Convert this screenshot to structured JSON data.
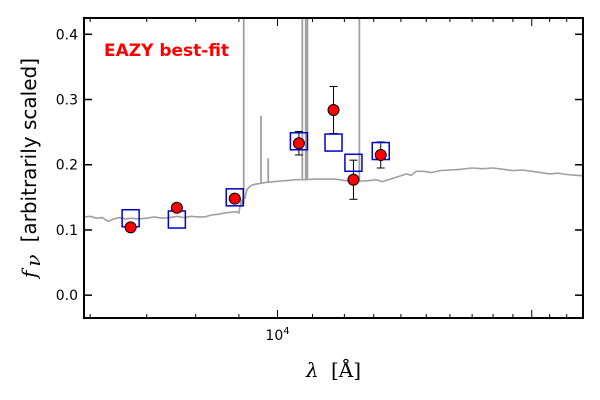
{
  "chart_data": {
    "type": "scatter",
    "annotation": "EAZY best-fit",
    "annotation_color": "#ff0000",
    "xlabel_symbol": "λ",
    "xlabel_unit": "[Å]",
    "ylabel_symbol": "f",
    "ylabel_subscript": "ν",
    "ylabel_text": "[arbitrarily scaled]",
    "x_scale": "log",
    "xlim": [
      5900,
      23000
    ],
    "ylim": [
      -0.035,
      0.425
    ],
    "x_tick_labels": [
      {
        "value": 10000,
        "label": "10^4"
      }
    ],
    "y_ticks": [
      0.0,
      0.1,
      0.2,
      0.3,
      0.4
    ],
    "y_tick_labels": [
      "0.0",
      "0.1",
      "0.2",
      "0.3",
      "0.4"
    ],
    "grid": false,
    "legend": "none",
    "series": [
      {
        "type": "observed_photometry",
        "color": "#ff0000",
        "points": [
          {
            "x": 6700,
            "y": 0.104
          },
          {
            "x": 7600,
            "y": 0.134
          },
          {
            "x": 8900,
            "y": 0.148
          },
          {
            "x": 10600,
            "y": 0.233,
            "yerr": 0.018
          },
          {
            "x": 11650,
            "y": 0.284,
            "yerr": 0.036
          },
          {
            "x": 12300,
            "y": 0.177,
            "yerr": 0.03
          },
          {
            "x": 13250,
            "y": 0.215,
            "yerr": 0.02
          }
        ]
      },
      {
        "type": "model_photometry",
        "color": "#0000cc",
        "points": [
          {
            "x": 6700,
            "y": 0.118
          },
          {
            "x": 7600,
            "y": 0.116
          },
          {
            "x": 8900,
            "y": 0.15
          },
          {
            "x": 10600,
            "y": 0.236
          },
          {
            "x": 11650,
            "y": 0.234
          },
          {
            "x": 12300,
            "y": 0.203
          },
          {
            "x": 13250,
            "y": 0.221
          }
        ]
      },
      {
        "type": "model_spectrum",
        "color": "#a0a0a0",
        "points": [
          [
            5900,
            0.12
          ],
          [
            6000,
            0.121
          ],
          [
            6100,
            0.118
          ],
          [
            6200,
            0.119
          ],
          [
            6300,
            0.113
          ],
          [
            6400,
            0.117
          ],
          [
            6500,
            0.119
          ],
          [
            6600,
            0.117
          ],
          [
            6700,
            0.118
          ],
          [
            6850,
            0.117
          ],
          [
            7000,
            0.118
          ],
          [
            7150,
            0.12
          ],
          [
            7300,
            0.118
          ],
          [
            7450,
            0.119
          ],
          [
            7600,
            0.121
          ],
          [
            7750,
            0.119
          ],
          [
            7900,
            0.121
          ],
          [
            8050,
            0.12
          ],
          [
            8200,
            0.12
          ],
          [
            8350,
            0.123
          ],
          [
            8500,
            0.124
          ],
          [
            8650,
            0.126
          ],
          [
            8800,
            0.127
          ],
          [
            8950,
            0.128
          ],
          [
            9000,
            0.126
          ],
          [
            9050,
            0.145
          ],
          [
            9080,
            0.14
          ],
          [
            9120,
            0.155
          ],
          [
            9150,
            0.148
          ],
          [
            9200,
            0.162
          ],
          [
            9300,
            0.168
          ],
          [
            9400,
            0.17
          ],
          [
            9500,
            0.171
          ],
          [
            9700,
            0.173
          ],
          [
            9900,
            0.174
          ],
          [
            10100,
            0.175
          ],
          [
            10300,
            0.176
          ],
          [
            10500,
            0.177
          ],
          [
            10800,
            0.177
          ],
          [
            11100,
            0.178
          ],
          [
            11400,
            0.178
          ],
          [
            11700,
            0.178
          ],
          [
            12000,
            0.176
          ],
          [
            12300,
            0.175
          ],
          [
            12600,
            0.175
          ],
          [
            12900,
            0.176
          ],
          [
            13100,
            0.177
          ],
          [
            13300,
            0.174
          ],
          [
            13600,
            0.178
          ],
          [
            14000,
            0.183
          ],
          [
            14200,
            0.186
          ],
          [
            14400,
            0.184
          ],
          [
            14600,
            0.19
          ],
          [
            14900,
            0.19
          ],
          [
            15200,
            0.188
          ],
          [
            15600,
            0.191
          ],
          [
            16000,
            0.192
          ],
          [
            16500,
            0.193
          ],
          [
            17000,
            0.195
          ],
          [
            17500,
            0.194
          ],
          [
            18000,
            0.195
          ],
          [
            18500,
            0.193
          ],
          [
            19000,
            0.191
          ],
          [
            19500,
            0.192
          ],
          [
            20000,
            0.19
          ],
          [
            20500,
            0.188
          ],
          [
            21000,
            0.186
          ],
          [
            21500,
            0.187
          ],
          [
            22000,
            0.185
          ],
          [
            22500,
            0.184
          ],
          [
            23000,
            0.183
          ]
        ],
        "emission_lines": [
          {
            "x": 9120,
            "y": 0.425
          },
          {
            "x": 9560,
            "y": 0.275
          },
          {
            "x": 9750,
            "y": 0.21
          },
          {
            "x": 10700,
            "y": 0.425
          },
          {
            "x": 10800,
            "y": 0.425
          },
          {
            "x": 10850,
            "y": 0.425
          },
          {
            "x": 12500,
            "y": 0.425
          }
        ]
      }
    ]
  }
}
